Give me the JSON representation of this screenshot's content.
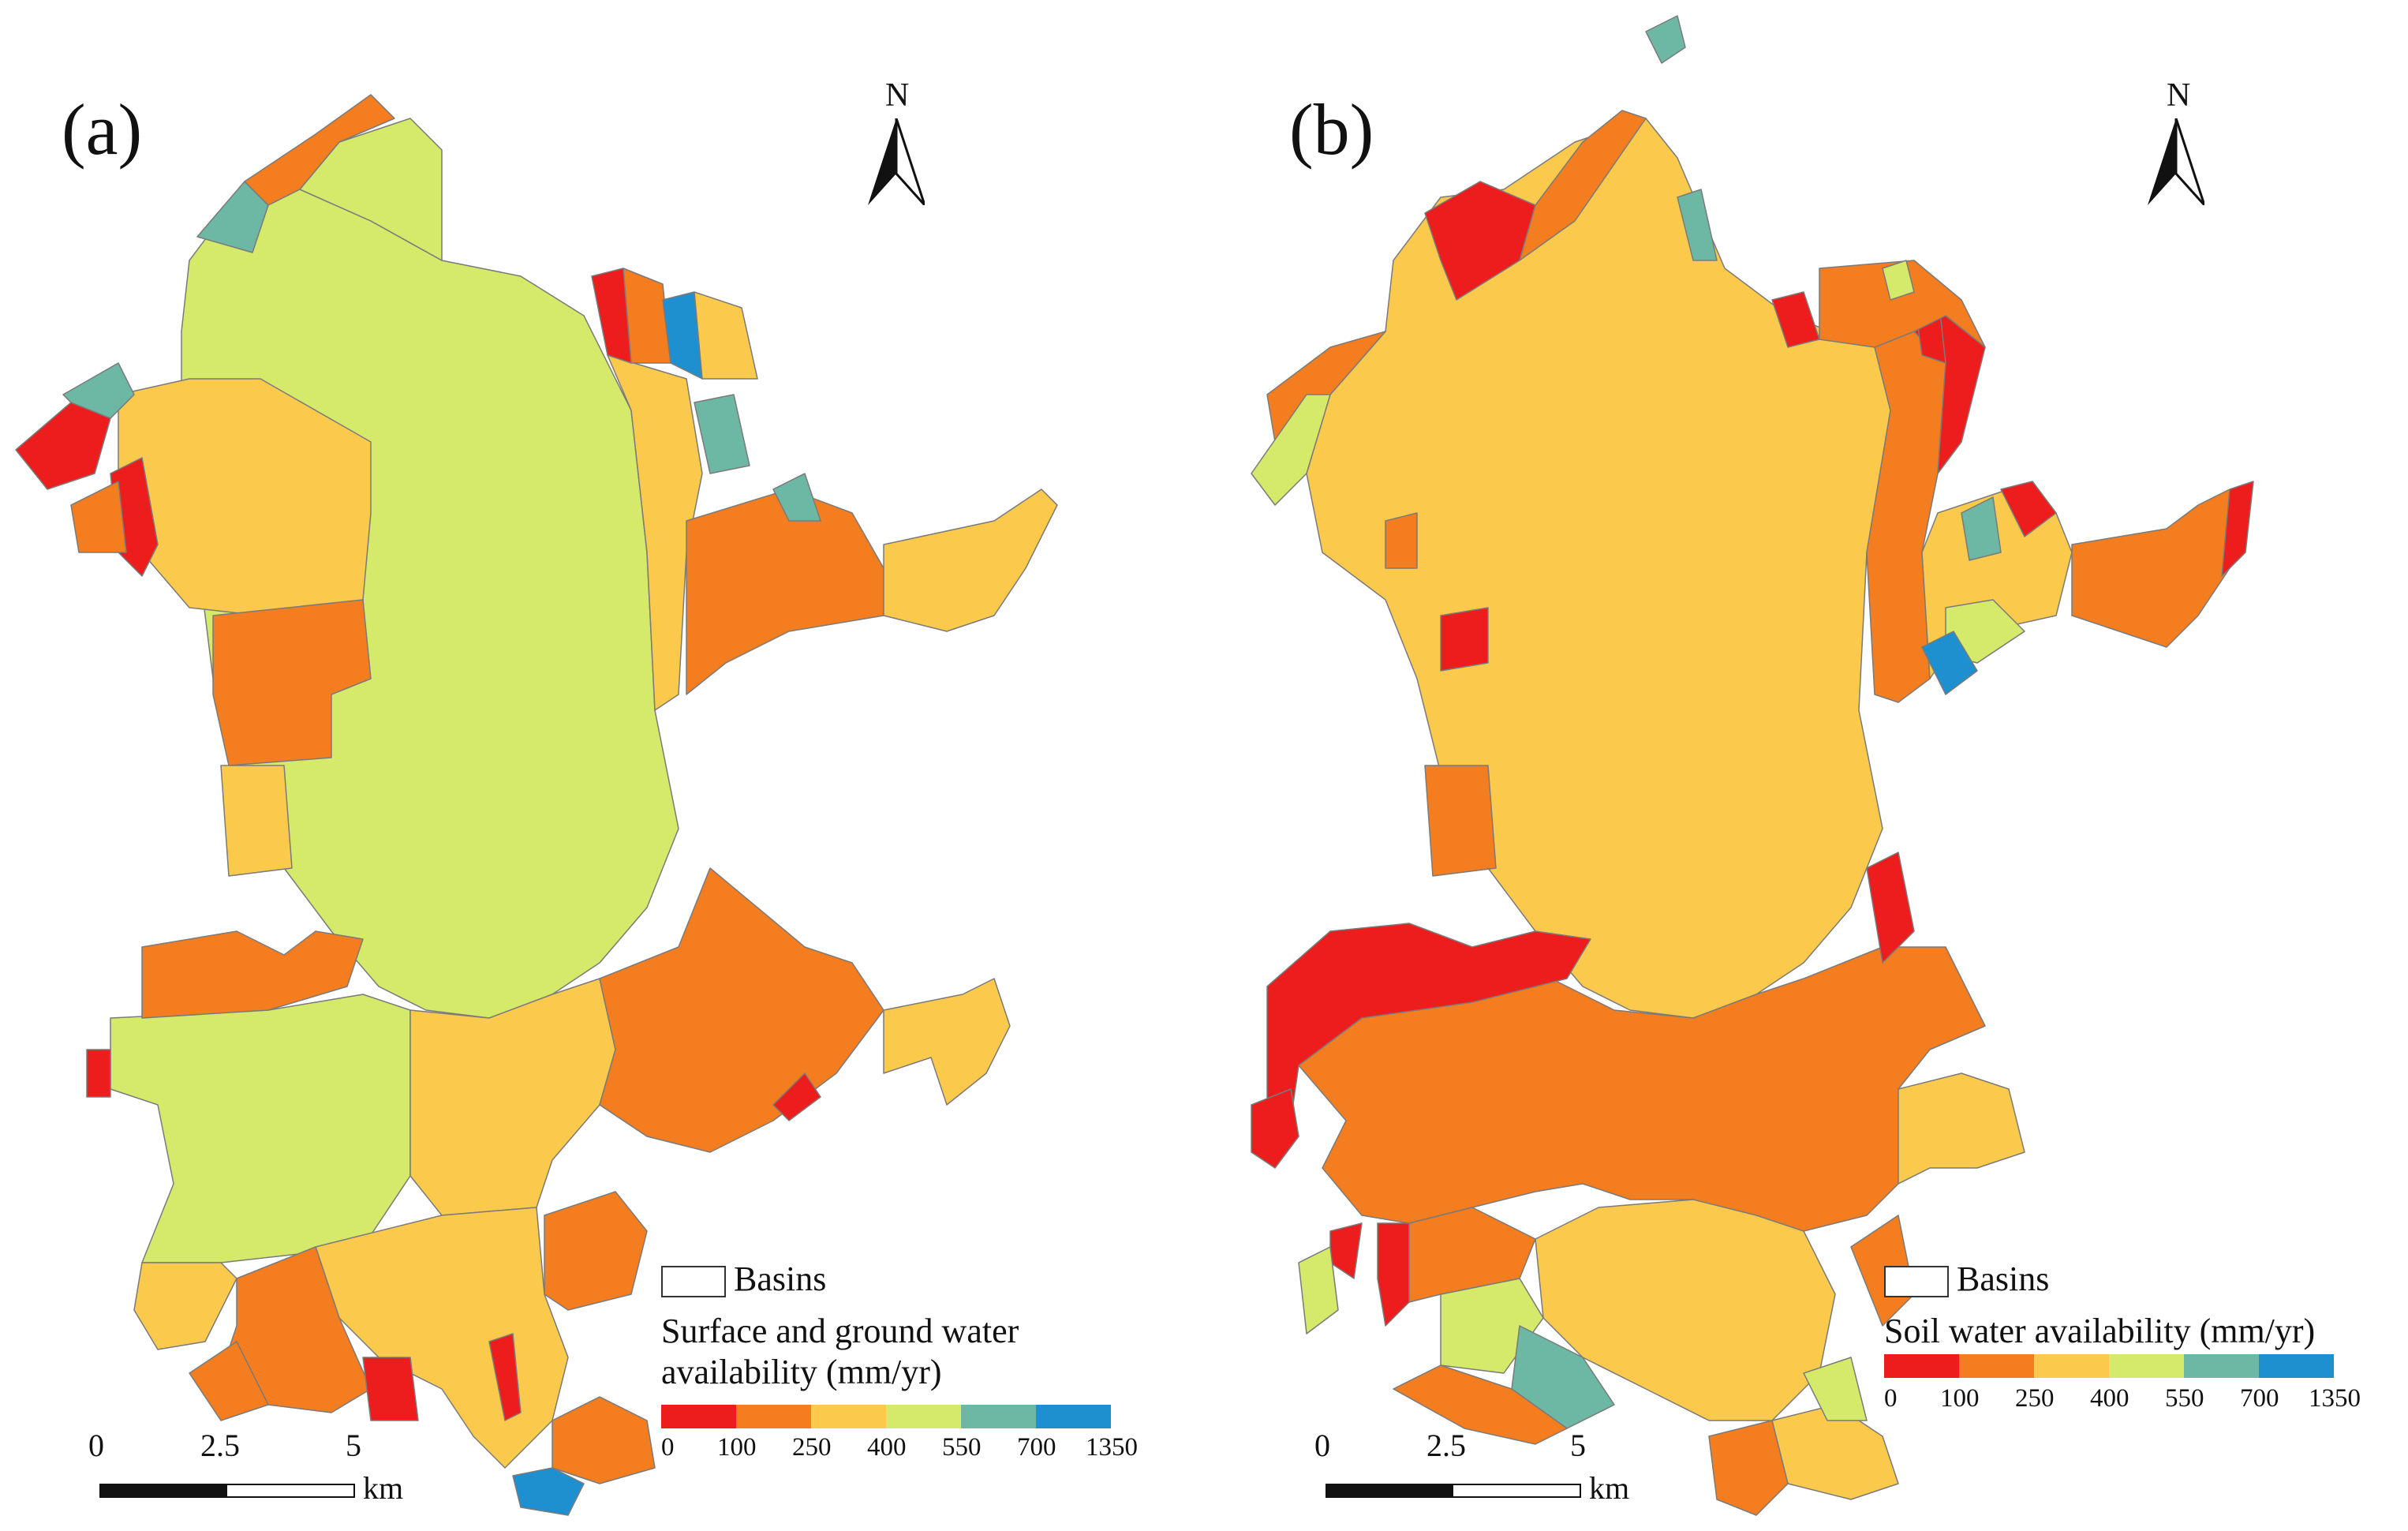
{
  "panels": [
    {
      "label": "(a)",
      "north": "N",
      "legend_basins": "Basins",
      "legend_title_line1": "Surface and ground water",
      "legend_title_line2": "availability (mm/yr)",
      "scale_ticks": [
        "0",
        "2.5",
        "5"
      ],
      "scale_unit": "km"
    },
    {
      "label": "(b)",
      "north": "N",
      "legend_basins": "Basins",
      "legend_title_line1": "Soil water availability (mm/yr)",
      "legend_title_line2": "",
      "scale_ticks": [
        "0",
        "2.5",
        "5"
      ],
      "scale_unit": "km"
    }
  ],
  "legend_breaks": [
    "0",
    "100",
    "250",
    "400",
    "550",
    "700",
    "1350"
  ],
  "class_colors": [
    "#ee1d1d",
    "#f47d20",
    "#fbc94b",
    "#d5e96a",
    "#6cb8a4",
    "#1e90d0"
  ],
  "map_colors": {
    "background": "#ffffff",
    "boundary": "#7a7a7a"
  }
}
